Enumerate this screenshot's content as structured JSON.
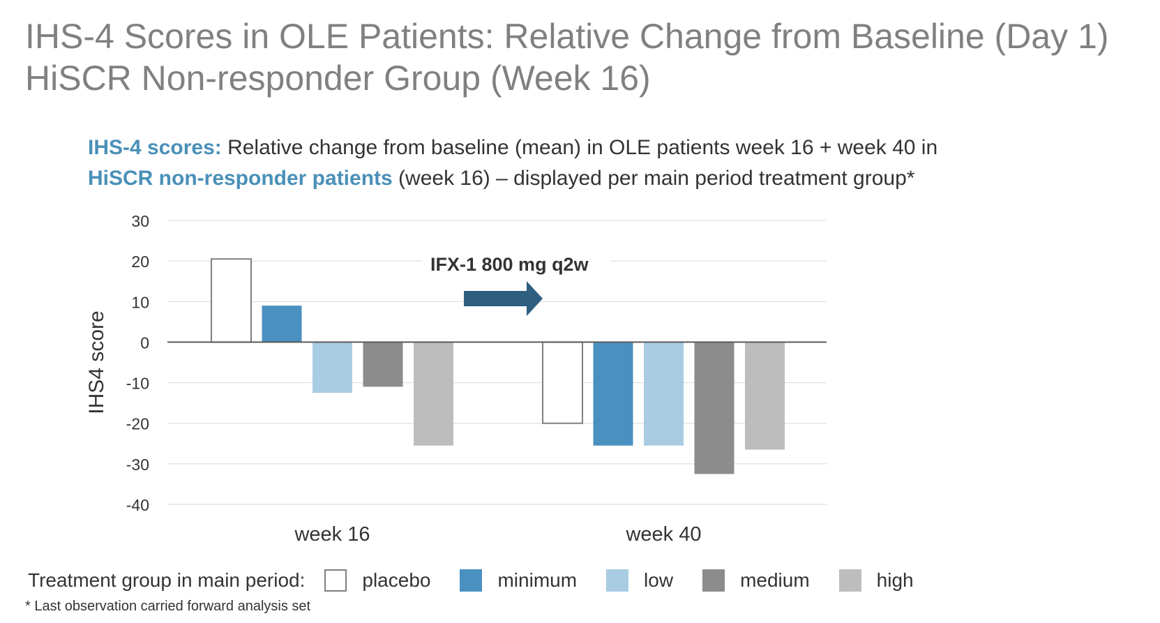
{
  "title": {
    "line1": "IHS-4 Scores in OLE Patients: Relative Change from Baseline (Day 1)",
    "line2": "HiSCR Non-responder Group (Week 16)"
  },
  "subtitle": {
    "line1_highlight": "IHS-4 scores:",
    "line1_rest": " Relative change from baseline (mean) in OLE patients week 16 + week 40 in",
    "line2_highlight": "HiSCR non-responder patients",
    "line2_rest": " (week 16) – displayed per main period treatment group*"
  },
  "legend": {
    "title": "Treatment group in main period:"
  },
  "footnote": "* Last observation carried forward analysis set",
  "colors": {
    "accent": "#4a90b8",
    "arrow": "#2e5f80",
    "axis": "#595959",
    "grid": "#d9d9d9"
  },
  "chart_data": {
    "type": "bar",
    "title": "",
    "xlabel": "",
    "ylabel": "IHS4 score",
    "ylim": [
      -40,
      30
    ],
    "yticks": [
      30,
      20,
      10,
      0,
      -10,
      -20,
      -30,
      -40
    ],
    "grid": true,
    "categories": [
      "week 16",
      "week 40"
    ],
    "annotation": "IFX-1 800 mg q2w",
    "series": [
      {
        "name": "placebo",
        "values": [
          20.5,
          -20
        ],
        "color": "#ffffff",
        "stroke": "#7f7f7f"
      },
      {
        "name": "minimum",
        "values": [
          9,
          -25.5
        ],
        "color": "#4a90c0",
        "stroke": "none"
      },
      {
        "name": "low",
        "values": [
          -12.5,
          -25.5
        ],
        "color": "#a9cce3",
        "stroke": "none"
      },
      {
        "name": "medium",
        "values": [
          -11,
          -32.5
        ],
        "color": "#8c8c8c",
        "stroke": "none"
      },
      {
        "name": "high",
        "values": [
          -25.5,
          -26.5
        ],
        "color": "#bdbdbd",
        "stroke": "none"
      }
    ]
  }
}
